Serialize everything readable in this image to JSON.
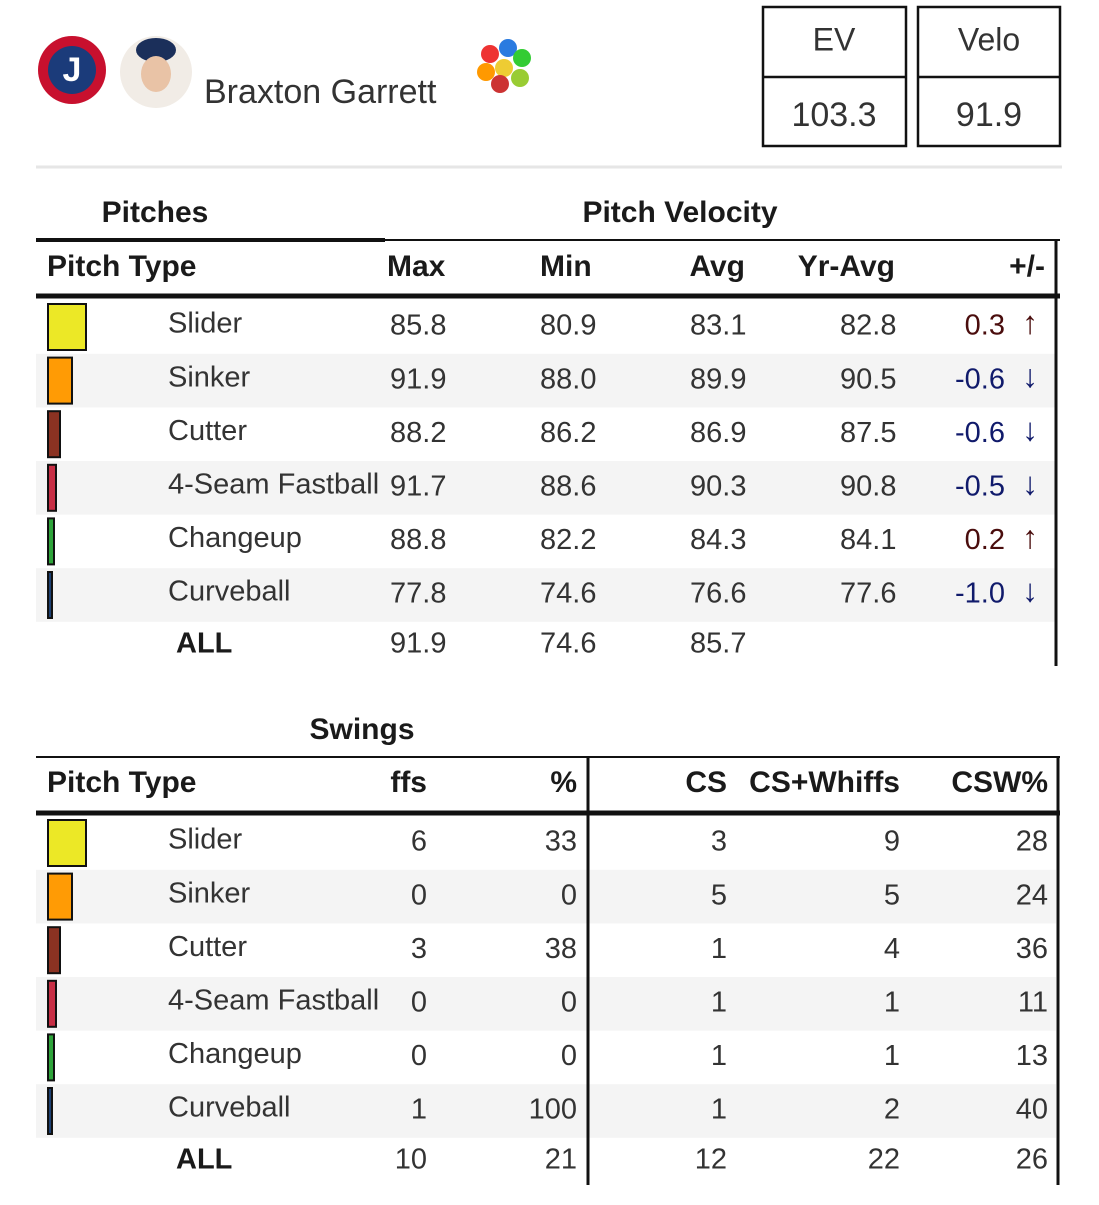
{
  "header": {
    "player": "Braxton Garrett",
    "ev_label": "EV",
    "velo_label": "Velo",
    "ev": "103.3",
    "velo": "91.9"
  },
  "velocity_table": {
    "group_left": "Pitches",
    "group_right": "Pitch Velocity",
    "columns": [
      "Pitch Type",
      "Max",
      "Min",
      "Avg",
      "Yr-Avg",
      "+/-"
    ],
    "rows": [
      {
        "pitch": "Slider",
        "color": "#ece826",
        "max": "85.8",
        "min": "80.9",
        "avg": "83.1",
        "yr_avg": "82.8",
        "diff": "0.3",
        "arrow": "↑"
      },
      {
        "pitch": "Sinker",
        "color": "#ff9b05",
        "max": "91.9",
        "min": "88.0",
        "avg": "89.9",
        "yr_avg": "90.5",
        "diff": "-0.6",
        "arrow": "↓"
      },
      {
        "pitch": "Cutter",
        "color": "#8b3222",
        "max": "88.2",
        "min": "86.2",
        "avg": "86.9",
        "yr_avg": "87.5",
        "diff": "-0.6",
        "arrow": "↓"
      },
      {
        "pitch": "4-Seam Fastball",
        "color": "#c72e45",
        "max": "91.7",
        "min": "88.6",
        "avg": "90.3",
        "yr_avg": "90.8",
        "diff": "-0.5",
        "arrow": "↓"
      },
      {
        "pitch": "Changeup",
        "color": "#2ea43a",
        "max": "88.8",
        "min": "82.2",
        "avg": "84.3",
        "yr_avg": "84.1",
        "diff": "0.2",
        "arrow": "↑"
      },
      {
        "pitch": "Curveball",
        "color": "#1c3f72",
        "max": "77.8",
        "min": "74.6",
        "avg": "76.6",
        "yr_avg": "77.6",
        "diff": "-1.0",
        "arrow": "↓"
      }
    ],
    "all": {
      "label": "ALL",
      "max": "91.9",
      "min": "74.6",
      "avg": "85.7"
    }
  },
  "swings_table": {
    "group": "Swings",
    "columns": [
      "Pitch Type",
      "ffs",
      "%",
      "CS",
      "CS+Whiffs",
      "CSW%"
    ],
    "rows": [
      {
        "pitch": "Slider",
        "color": "#ece826",
        "whiffs": "6",
        "pct": "33",
        "cs": "3",
        "cs_whiffs": "9",
        "csw": "28"
      },
      {
        "pitch": "Sinker",
        "color": "#ff9b05",
        "whiffs": "0",
        "pct": "0",
        "cs": "5",
        "cs_whiffs": "5",
        "csw": "24"
      },
      {
        "pitch": "Cutter",
        "color": "#8b3222",
        "whiffs": "3",
        "pct": "38",
        "cs": "1",
        "cs_whiffs": "4",
        "csw": "36"
      },
      {
        "pitch": "4-Seam Fastball",
        "color": "#c72e45",
        "whiffs": "0",
        "pct": "0",
        "cs": "1",
        "cs_whiffs": "1",
        "csw": "11"
      },
      {
        "pitch": "Changeup",
        "color": "#2ea43a",
        "whiffs": "0",
        "pct": "0",
        "cs": "1",
        "cs_whiffs": "1",
        "csw": "13"
      },
      {
        "pitch": "Curveball",
        "color": "#1c3f72",
        "whiffs": "1",
        "pct": "100",
        "cs": "1",
        "cs_whiffs": "2",
        "csw": "40"
      }
    ],
    "all": {
      "label": "ALL",
      "whiffs": "10",
      "pct": "21",
      "cs": "12",
      "cs_whiffs": "22",
      "csw": "26"
    }
  }
}
